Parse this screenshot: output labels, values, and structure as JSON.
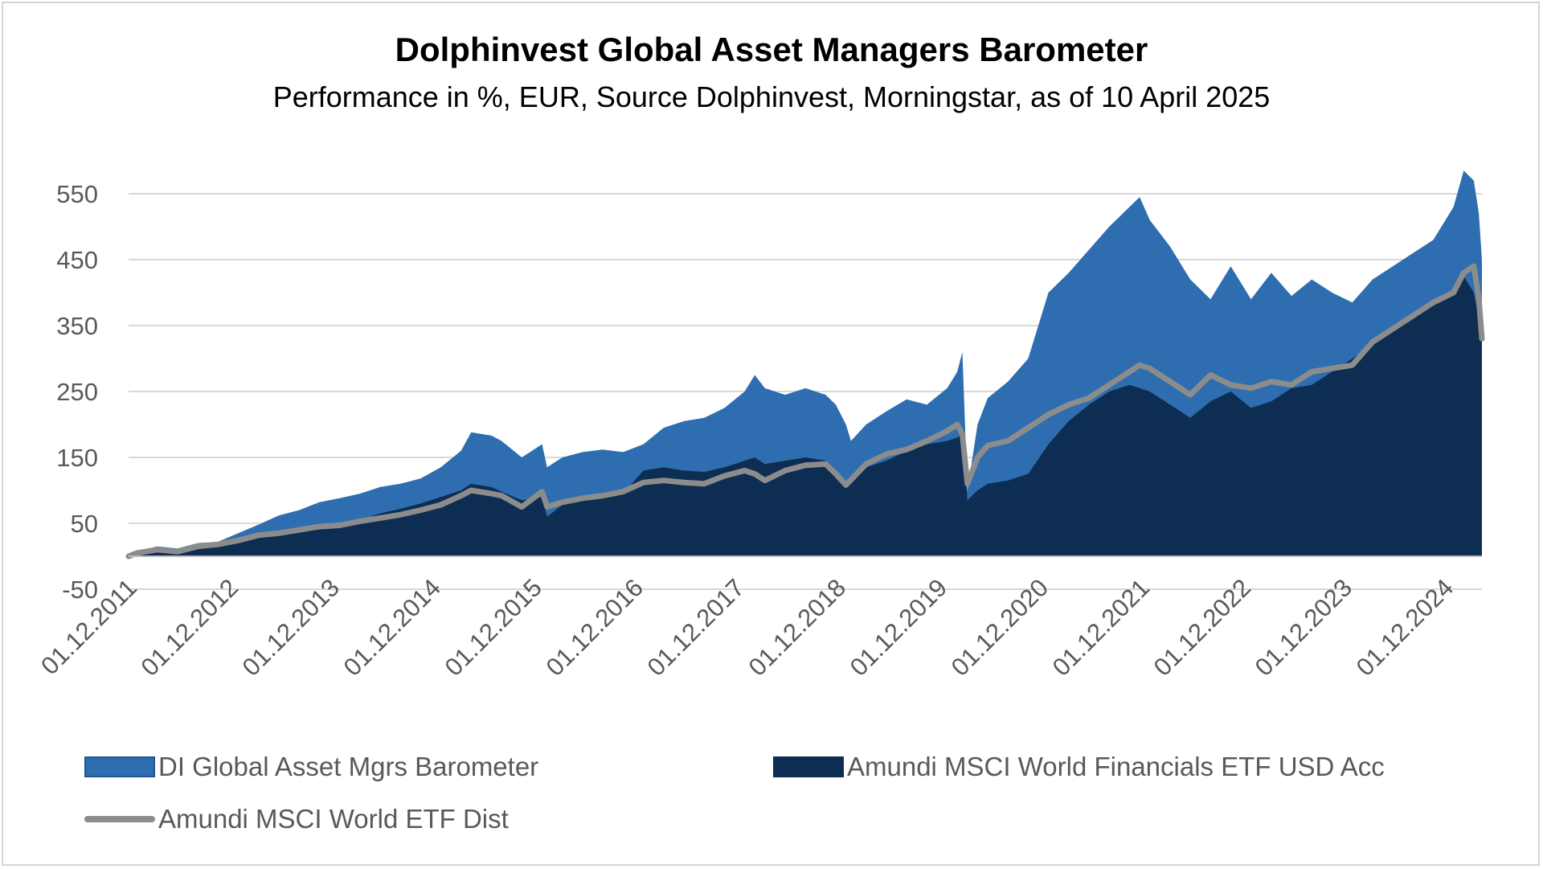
{
  "header": {
    "title": "Dolphinvest Global Asset Managers Barometer",
    "subtitle": "Performance in %, EUR, Source Dolphinvest, Morningstar,  as of 10 April 2025"
  },
  "chart_data": {
    "type": "area",
    "title": "Dolphinvest Global Asset Managers Barometer",
    "subtitle": "Performance in %, EUR, Source Dolphinvest, Morningstar,  as of 10 April 2025",
    "xlabel": "",
    "ylabel": "",
    "ylim": [
      -50,
      600
    ],
    "yticks": [
      -50,
      50,
      150,
      250,
      350,
      450,
      550
    ],
    "xlim": [
      2011.917,
      2025.28
    ],
    "xticks": [
      "01.12.2011",
      "01.12.2012",
      "01.12.2013",
      "01.12.2014",
      "01.12.2015",
      "01.12.2016",
      "01.12.2017",
      "01.12.2018",
      "01.12.2019",
      "01.12.2020",
      "01.12.2021",
      "01.12.2022",
      "01.12.2023",
      "01.12.2024"
    ],
    "grid": "horizontal",
    "legend_position": "bottom",
    "series": [
      {
        "name": "DI Global Asset Mgrs Barometer",
        "style": "area",
        "color": "#2e6eb0",
        "points": [
          [
            2011.917,
            0
          ],
          [
            2012.0,
            8
          ],
          [
            2012.2,
            15
          ],
          [
            2012.4,
            12
          ],
          [
            2012.6,
            20
          ],
          [
            2012.8,
            22
          ],
          [
            2013.0,
            35
          ],
          [
            2013.2,
            48
          ],
          [
            2013.4,
            62
          ],
          [
            2013.6,
            70
          ],
          [
            2013.8,
            82
          ],
          [
            2014.0,
            88
          ],
          [
            2014.2,
            95
          ],
          [
            2014.4,
            105
          ],
          [
            2014.6,
            110
          ],
          [
            2014.8,
            118
          ],
          [
            2015.0,
            135
          ],
          [
            2015.2,
            160
          ],
          [
            2015.3,
            188
          ],
          [
            2015.5,
            183
          ],
          [
            2015.6,
            175
          ],
          [
            2015.8,
            150
          ],
          [
            2016.0,
            170
          ],
          [
            2016.05,
            135
          ],
          [
            2016.2,
            150
          ],
          [
            2016.4,
            158
          ],
          [
            2016.6,
            162
          ],
          [
            2016.8,
            158
          ],
          [
            2017.0,
            170
          ],
          [
            2017.2,
            195
          ],
          [
            2017.4,
            205
          ],
          [
            2017.6,
            210
          ],
          [
            2017.8,
            225
          ],
          [
            2018.0,
            250
          ],
          [
            2018.1,
            275
          ],
          [
            2018.2,
            255
          ],
          [
            2018.4,
            245
          ],
          [
            2018.6,
            255
          ],
          [
            2018.8,
            245
          ],
          [
            2018.9,
            230
          ],
          [
            2019.0,
            200
          ],
          [
            2019.05,
            175
          ],
          [
            2019.2,
            200
          ],
          [
            2019.4,
            220
          ],
          [
            2019.6,
            238
          ],
          [
            2019.8,
            230
          ],
          [
            2020.0,
            255
          ],
          [
            2020.1,
            280
          ],
          [
            2020.15,
            310
          ],
          [
            2020.2,
            100
          ],
          [
            2020.3,
            200
          ],
          [
            2020.4,
            240
          ],
          [
            2020.6,
            265
          ],
          [
            2020.8,
            300
          ],
          [
            2021.0,
            400
          ],
          [
            2021.2,
            430
          ],
          [
            2021.4,
            465
          ],
          [
            2021.6,
            500
          ],
          [
            2021.8,
            530
          ],
          [
            2021.9,
            545
          ],
          [
            2022.0,
            510
          ],
          [
            2022.2,
            470
          ],
          [
            2022.4,
            420
          ],
          [
            2022.6,
            390
          ],
          [
            2022.8,
            440
          ],
          [
            2023.0,
            390
          ],
          [
            2023.2,
            430
          ],
          [
            2023.4,
            395
          ],
          [
            2023.6,
            420
          ],
          [
            2023.8,
            400
          ],
          [
            2024.0,
            385
          ],
          [
            2024.2,
            420
          ],
          [
            2024.4,
            440
          ],
          [
            2024.6,
            460
          ],
          [
            2024.8,
            480
          ],
          [
            2025.0,
            530
          ],
          [
            2025.1,
            585
          ],
          [
            2025.2,
            570
          ],
          [
            2025.25,
            520
          ],
          [
            2025.28,
            450
          ]
        ]
      },
      {
        "name": "Amundi MSCI World Financials ETF USD Acc",
        "style": "area",
        "color": "#0d2d52",
        "points": [
          [
            2011.917,
            0
          ],
          [
            2012.0,
            5
          ],
          [
            2012.2,
            10
          ],
          [
            2012.4,
            8
          ],
          [
            2012.6,
            15
          ],
          [
            2012.8,
            18
          ],
          [
            2013.0,
            22
          ],
          [
            2013.2,
            28
          ],
          [
            2013.4,
            35
          ],
          [
            2013.6,
            40
          ],
          [
            2013.8,
            45
          ],
          [
            2014.0,
            48
          ],
          [
            2014.2,
            55
          ],
          [
            2014.4,
            65
          ],
          [
            2014.6,
            72
          ],
          [
            2014.8,
            80
          ],
          [
            2015.0,
            90
          ],
          [
            2015.2,
            100
          ],
          [
            2015.3,
            110
          ],
          [
            2015.5,
            105
          ],
          [
            2015.6,
            98
          ],
          [
            2015.8,
            85
          ],
          [
            2016.0,
            90
          ],
          [
            2016.05,
            60
          ],
          [
            2016.2,
            78
          ],
          [
            2016.4,
            85
          ],
          [
            2016.6,
            90
          ],
          [
            2016.8,
            95
          ],
          [
            2017.0,
            130
          ],
          [
            2017.2,
            135
          ],
          [
            2017.4,
            130
          ],
          [
            2017.6,
            128
          ],
          [
            2017.8,
            135
          ],
          [
            2018.0,
            145
          ],
          [
            2018.1,
            150
          ],
          [
            2018.2,
            140
          ],
          [
            2018.4,
            145
          ],
          [
            2018.6,
            150
          ],
          [
            2018.8,
            145
          ],
          [
            2018.9,
            130
          ],
          [
            2019.0,
            105
          ],
          [
            2019.2,
            135
          ],
          [
            2019.4,
            145
          ],
          [
            2019.6,
            160
          ],
          [
            2019.8,
            170
          ],
          [
            2020.0,
            175
          ],
          [
            2020.1,
            180
          ],
          [
            2020.15,
            185
          ],
          [
            2020.2,
            85
          ],
          [
            2020.3,
            100
          ],
          [
            2020.4,
            110
          ],
          [
            2020.6,
            115
          ],
          [
            2020.8,
            125
          ],
          [
            2021.0,
            170
          ],
          [
            2021.2,
            205
          ],
          [
            2021.4,
            230
          ],
          [
            2021.6,
            250
          ],
          [
            2021.8,
            260
          ],
          [
            2022.0,
            250
          ],
          [
            2022.2,
            230
          ],
          [
            2022.4,
            210
          ],
          [
            2022.6,
            235
          ],
          [
            2022.8,
            250
          ],
          [
            2023.0,
            225
          ],
          [
            2023.2,
            235
          ],
          [
            2023.4,
            255
          ],
          [
            2023.6,
            260
          ],
          [
            2023.8,
            280
          ],
          [
            2024.0,
            300
          ],
          [
            2024.2,
            320
          ],
          [
            2024.4,
            340
          ],
          [
            2024.6,
            360
          ],
          [
            2024.8,
            385
          ],
          [
            2025.0,
            405
          ],
          [
            2025.1,
            425
          ],
          [
            2025.2,
            400
          ],
          [
            2025.25,
            360
          ],
          [
            2025.28,
            330
          ]
        ]
      },
      {
        "name": "Amundi MSCI World ETF Dist",
        "style": "line",
        "color": "#8c8c8c",
        "points": [
          [
            2011.917,
            0
          ],
          [
            2012.0,
            5
          ],
          [
            2012.2,
            10
          ],
          [
            2012.4,
            7
          ],
          [
            2012.6,
            15
          ],
          [
            2012.8,
            18
          ],
          [
            2013.0,
            24
          ],
          [
            2013.2,
            32
          ],
          [
            2013.4,
            35
          ],
          [
            2013.6,
            40
          ],
          [
            2013.8,
            45
          ],
          [
            2014.0,
            47
          ],
          [
            2014.2,
            53
          ],
          [
            2014.4,
            58
          ],
          [
            2014.6,
            63
          ],
          [
            2014.8,
            70
          ],
          [
            2015.0,
            78
          ],
          [
            2015.2,
            92
          ],
          [
            2015.3,
            100
          ],
          [
            2015.5,
            95
          ],
          [
            2015.6,
            92
          ],
          [
            2015.8,
            75
          ],
          [
            2016.0,
            98
          ],
          [
            2016.05,
            75
          ],
          [
            2016.2,
            82
          ],
          [
            2016.4,
            88
          ],
          [
            2016.6,
            92
          ],
          [
            2016.8,
            98
          ],
          [
            2017.0,
            112
          ],
          [
            2017.2,
            115
          ],
          [
            2017.4,
            112
          ],
          [
            2017.6,
            110
          ],
          [
            2017.8,
            122
          ],
          [
            2018.0,
            130
          ],
          [
            2018.1,
            125
          ],
          [
            2018.2,
            115
          ],
          [
            2018.4,
            130
          ],
          [
            2018.6,
            138
          ],
          [
            2018.8,
            140
          ],
          [
            2018.9,
            125
          ],
          [
            2019.0,
            108
          ],
          [
            2019.2,
            140
          ],
          [
            2019.4,
            155
          ],
          [
            2019.6,
            162
          ],
          [
            2019.8,
            175
          ],
          [
            2020.0,
            190
          ],
          [
            2020.1,
            200
          ],
          [
            2020.15,
            185
          ],
          [
            2020.2,
            110
          ],
          [
            2020.3,
            150
          ],
          [
            2020.4,
            168
          ],
          [
            2020.6,
            175
          ],
          [
            2020.8,
            195
          ],
          [
            2021.0,
            215
          ],
          [
            2021.2,
            230
          ],
          [
            2021.4,
            240
          ],
          [
            2021.6,
            260
          ],
          [
            2021.8,
            280
          ],
          [
            2021.9,
            290
          ],
          [
            2022.0,
            285
          ],
          [
            2022.2,
            265
          ],
          [
            2022.4,
            245
          ],
          [
            2022.6,
            275
          ],
          [
            2022.8,
            260
          ],
          [
            2023.0,
            255
          ],
          [
            2023.2,
            265
          ],
          [
            2023.4,
            260
          ],
          [
            2023.6,
            280
          ],
          [
            2023.8,
            285
          ],
          [
            2024.0,
            290
          ],
          [
            2024.2,
            325
          ],
          [
            2024.4,
            345
          ],
          [
            2024.6,
            365
          ],
          [
            2024.8,
            385
          ],
          [
            2025.0,
            400
          ],
          [
            2025.1,
            430
          ],
          [
            2025.2,
            440
          ],
          [
            2025.25,
            390
          ],
          [
            2025.28,
            330
          ]
        ]
      }
    ]
  },
  "legend": {
    "items": [
      {
        "label": "DI Global Asset Mgrs Barometer",
        "color": "#2e6eb0"
      },
      {
        "label": "Amundi MSCI World Financials ETF USD Acc",
        "color": "#0d2d52"
      },
      {
        "label": "Amundi MSCI World ETF Dist",
        "color": "#8c8c8c"
      }
    ]
  }
}
